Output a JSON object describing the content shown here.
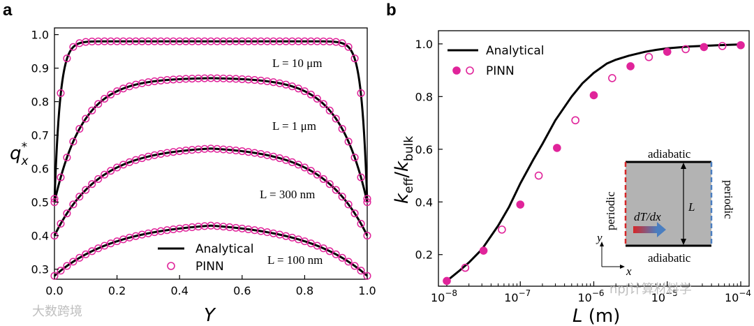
{
  "panel_labels": [
    "a",
    "b"
  ],
  "watermarks": {
    "left": "大数跨境",
    "right": "npj计算材料学"
  },
  "inset": {
    "top": "adiabatic",
    "bottom": "adiabatic",
    "left": "periodic",
    "right": "periodic",
    "length": "L",
    "gradient": "dT/dx",
    "axis_y": "y",
    "axis_x": "x"
  },
  "colors": {
    "analytical": "#000000",
    "pinn": "#e0249a",
    "inset_fill": "#b3b3b3",
    "left_boundary": "#d62728",
    "right_boundary": "#4a7ec0"
  },
  "chart_data": [
    {
      "type": "line",
      "panel": "a",
      "xlabel": "Y",
      "ylabel": "q_x^*",
      "xlim": [
        0,
        1
      ],
      "ylim": [
        0.27,
        1.02
      ],
      "xticks": [
        "0.0",
        "0.2",
        "0.4",
        "0.6",
        "0.8",
        "1.0"
      ],
      "yticks": [
        "0.3",
        "0.4",
        "0.5",
        "0.6",
        "0.7",
        "0.8",
        "0.9",
        "1.0"
      ],
      "legend": {
        "position": "bottom-center",
        "entries": [
          "Analytical",
          "PINN"
        ]
      },
      "series": [
        {
          "name": "Analytical",
          "style": "line",
          "curves": [
            {
              "label": "L = 10 μm",
              "center": 0.98,
              "edge": 0.5
            },
            {
              "label": "L = 1 μm",
              "center": 0.87,
              "edge": 0.5
            },
            {
              "label": "L = 300 nm",
              "center": 0.66,
              "edge": 0.4
            },
            {
              "label": "L = 100 nm",
              "center": 0.43,
              "edge": 0.28
            }
          ]
        },
        {
          "name": "PINN",
          "style": "open-circle",
          "curves": [
            {
              "label": "L = 10 μm",
              "center": 0.98,
              "edge": 0.51
            },
            {
              "label": "L = 1 μm",
              "center": 0.87,
              "edge": 0.5
            },
            {
              "label": "L = 300 nm",
              "center": 0.66,
              "edge": 0.4
            },
            {
              "label": "L = 100 nm",
              "center": 0.43,
              "edge": 0.28
            }
          ]
        }
      ]
    },
    {
      "type": "line",
      "panel": "b",
      "xlabel": "L (m)",
      "ylabel": "k_eff/k_bulk",
      "xscale": "log",
      "xlim": [
        1e-08,
        0.0001
      ],
      "ylim": [
        0.08,
        1.05
      ],
      "xticks": [
        "10^-8",
        "10^-7",
        "10^-6",
        "10^-5",
        "10^-4"
      ],
      "yticks": [
        "0.2",
        "0.4",
        "0.6",
        "0.8",
        "1.0"
      ],
      "legend": {
        "position": "top-left",
        "entries": [
          "Analytical",
          "PINN"
        ]
      },
      "series": [
        {
          "name": "Analytical",
          "style": "line",
          "x": [
            1e-08,
            1.5e-08,
            2e-08,
            3e-08,
            5e-08,
            7e-08,
            1e-07,
            1.5e-07,
            2e-07,
            3e-07,
            5e-07,
            7e-07,
            1e-06,
            1.5e-06,
            2e-06,
            3e-06,
            5e-06,
            7e-06,
            1e-05,
            2e-05,
            5e-05,
            0.0001
          ],
          "y": [
            0.1,
            0.14,
            0.17,
            0.22,
            0.31,
            0.38,
            0.47,
            0.56,
            0.62,
            0.71,
            0.8,
            0.85,
            0.89,
            0.925,
            0.94,
            0.955,
            0.97,
            0.977,
            0.983,
            0.99,
            0.995,
            0.998
          ]
        },
        {
          "name": "PINN",
          "style": "alternating-filled-open",
          "x": [
            1e-08,
            1.78e-08,
            3.16e-08,
            5.62e-08,
            1e-07,
            1.78e-07,
            3.16e-07,
            5.62e-07,
            1e-06,
            1.78e-06,
            3.16e-06,
            5.62e-06,
            1e-05,
            1.78e-05,
            3.16e-05,
            5.62e-05,
            0.0001
          ],
          "y": [
            0.1,
            0.15,
            0.215,
            0.295,
            0.39,
            0.5,
            0.605,
            0.71,
            0.805,
            0.87,
            0.915,
            0.95,
            0.97,
            0.98,
            0.988,
            0.992,
            0.995
          ]
        }
      ]
    }
  ]
}
